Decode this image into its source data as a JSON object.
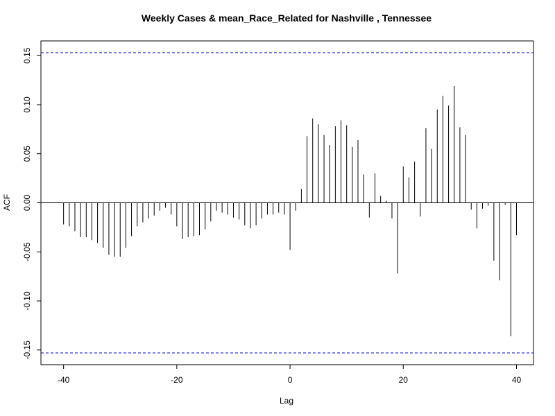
{
  "chart_data": {
    "type": "bar",
    "subtype": "acf-lag-plot",
    "title": "Weekly Cases & mean_Race_Related for Nashville , Tennessee",
    "xlabel": "Lag",
    "ylabel": "ACF",
    "xlim": [
      -44,
      43
    ],
    "ylim": [
      -0.165,
      0.165
    ],
    "x_ticks": [
      -40,
      -20,
      0,
      20,
      40
    ],
    "x_tick_labels": [
      "-40",
      "-20",
      "0",
      "20",
      "40"
    ],
    "y_ticks": [
      -0.15,
      -0.1,
      -0.05,
      0.0,
      0.05,
      0.1,
      0.15
    ],
    "y_tick_labels": [
      "-0.15",
      "-0.10",
      "-0.05",
      "0.00",
      "0.05",
      "0.10",
      "0.15"
    ],
    "confidence_band": 0.153,
    "confidence_color": "#0000cc",
    "line_color": "#000000",
    "lags": [
      -40,
      -39,
      -38,
      -37,
      -36,
      -35,
      -34,
      -33,
      -32,
      -31,
      -30,
      -29,
      -28,
      -27,
      -26,
      -25,
      -24,
      -23,
      -22,
      -21,
      -20,
      -19,
      -18,
      -17,
      -16,
      -15,
      -14,
      -13,
      -12,
      -11,
      -10,
      -9,
      -8,
      -7,
      -6,
      -5,
      -4,
      -3,
      -2,
      -1,
      0,
      1,
      2,
      3,
      4,
      5,
      6,
      7,
      8,
      9,
      10,
      11,
      12,
      13,
      14,
      15,
      16,
      17,
      18,
      19,
      20,
      21,
      22,
      23,
      24,
      25,
      26,
      27,
      28,
      29,
      30,
      31,
      32,
      33,
      34,
      35,
      36,
      37,
      38,
      39,
      40
    ],
    "values": [
      -0.022,
      -0.024,
      -0.029,
      -0.035,
      -0.035,
      -0.038,
      -0.041,
      -0.046,
      -0.053,
      -0.055,
      -0.055,
      -0.046,
      -0.034,
      -0.024,
      -0.02,
      -0.016,
      -0.013,
      -0.008,
      -0.005,
      -0.012,
      -0.024,
      -0.037,
      -0.035,
      -0.034,
      -0.033,
      -0.027,
      -0.019,
      -0.008,
      -0.01,
      -0.012,
      -0.015,
      -0.017,
      -0.023,
      -0.026,
      -0.023,
      -0.016,
      -0.012,
      -0.012,
      -0.01,
      -0.012,
      -0.048,
      -0.008,
      0.014,
      0.068,
      0.086,
      0.08,
      0.069,
      0.059,
      0.078,
      0.084,
      0.079,
      0.057,
      0.064,
      0.029,
      -0.015,
      0.03,
      0.007,
      0.002,
      -0.016,
      -0.072,
      0.037,
      0.026,
      0.042,
      -0.014,
      0.076,
      0.055,
      0.095,
      0.109,
      0.099,
      0.119,
      0.077,
      0.069,
      -0.007,
      -0.026,
      -0.006,
      -0.003,
      -0.059,
      -0.079,
      -0.002,
      -0.136,
      -0.033
    ]
  }
}
